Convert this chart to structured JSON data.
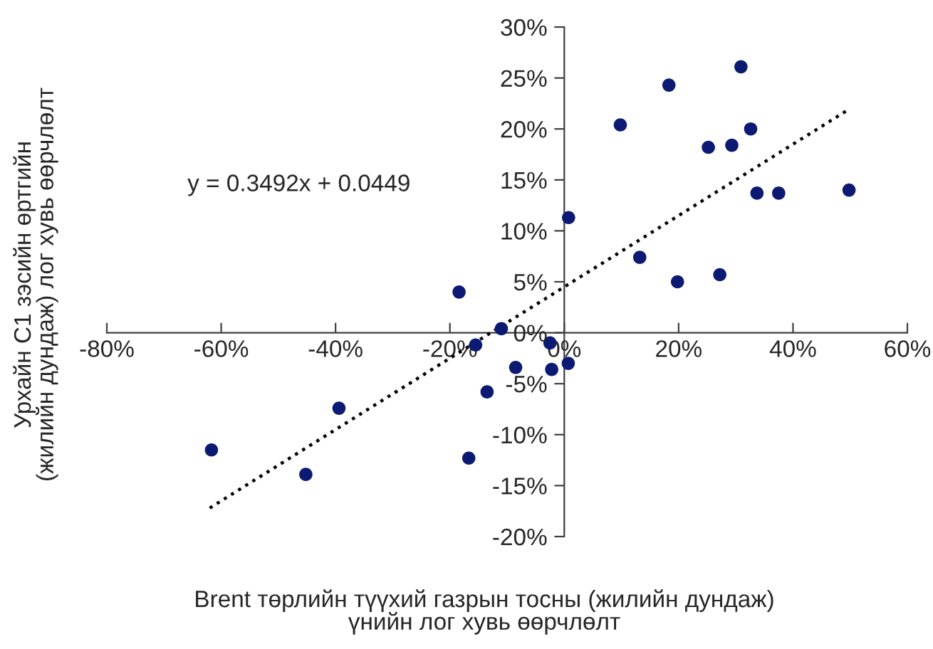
{
  "chart_data": {
    "type": "scatter",
    "xlabel": "Brent төрлийн түүхий газрын тосны (жилийн дундаж) үнийн лог хувь өөрчлөлт",
    "ylabel": "Урхайн С1 зэсийн өртгийн (жилийн дундаж) лог хувь өөрчлөлт",
    "annotations": [
      "y = 0.3492x + 0.0449"
    ],
    "series": [
      {
        "type": "scatter",
        "color": "#0d1a73",
        "marker": "circle",
        "x": [
          0.75,
          -18.4,
          -11.0,
          -15.5,
          -2.5,
          -8.5,
          -2.2,
          0.7,
          -13.5,
          -39.4,
          -61.7,
          -16.7,
          -45.2,
          30.9,
          18.3,
          9.8,
          32.6,
          25.2,
          29.3,
          33.7,
          37.5,
          49.8,
          13.2,
          19.8,
          27.2
        ],
        "values": [
          11.3,
          4.0,
          0.4,
          -1.2,
          -1.0,
          -3.4,
          -3.6,
          -3.0,
          -5.8,
          -7.4,
          -11.5,
          -12.3,
          -13.9,
          26.1,
          24.3,
          20.4,
          20.0,
          18.2,
          18.4,
          13.7,
          13.7,
          14.0,
          7.4,
          5.0,
          5.7
        ]
      },
      {
        "type": "line",
        "color": "#000000",
        "line_style": "dotted",
        "x": [
          -62,
          50
        ],
        "values": [
          -17.2,
          22.0
        ]
      }
    ],
    "xlim": [
      -80,
      60
    ],
    "xticks": [
      {
        "value": -80,
        "label": "-80%"
      },
      {
        "value": -60,
        "label": "-60%"
      },
      {
        "value": -40,
        "label": "-40%"
      },
      {
        "value": -20,
        "label": "-20%"
      },
      {
        "value": 0,
        "label": "0%"
      },
      {
        "value": 20,
        "label": "20%"
      },
      {
        "value": 40,
        "label": "40%"
      },
      {
        "value": 60,
        "label": "60%"
      }
    ],
    "ylim": [
      -20,
      30
    ],
    "yticks": [
      {
        "value": -20,
        "label": "-20%"
      },
      {
        "value": -15,
        "label": "-15%"
      },
      {
        "value": -10,
        "label": "-10%"
      },
      {
        "value": -5,
        "label": "-5%"
      },
      {
        "value": 0,
        "label": "0%"
      },
      {
        "value": 5,
        "label": "5%"
      },
      {
        "value": 10,
        "label": "10%"
      },
      {
        "value": 15,
        "label": "15%"
      },
      {
        "value": 20,
        "label": "20%"
      },
      {
        "value": 25,
        "label": "25%"
      },
      {
        "value": 30,
        "label": "30%"
      }
    ],
    "grid": false,
    "legend": false
  }
}
